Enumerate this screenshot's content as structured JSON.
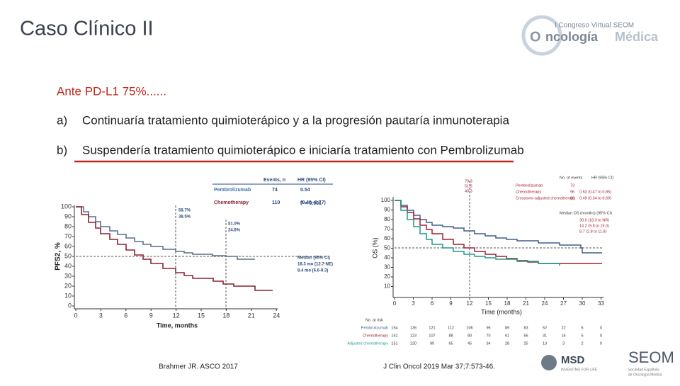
{
  "title": "Caso Clínico II",
  "logo": {
    "line1": "I Congreso Virtual SEOM",
    "line2a": "ncología",
    "line2b": "Médica"
  },
  "question": "Ante PD-L1 75%......",
  "options": [
    {
      "letter": "a)",
      "text": "Continuaría tratamiento quimioterápico y a la progresión pautaría inmunoterapia"
    },
    {
      "letter": "b)",
      "text": "Suspendería tratamiento quimioterápico e iniciaría tratamiento con Pembrolizumab"
    }
  ],
  "figure1": {
    "y_label": "PFS2, %",
    "x_label": "Time, months",
    "x_ticks": [
      "0",
      "3",
      "6",
      "9",
      "12",
      "15",
      "18",
      "21",
      "24"
    ],
    "y_ticks": [
      "100",
      "90",
      "80",
      "70",
      "60",
      "50",
      "40",
      "30",
      "20",
      "10",
      "0"
    ],
    "legend_head": [
      "Events, n",
      "HR (95% CI)"
    ],
    "legend_rows": [
      [
        "Pembrolizumab",
        "74",
        "0.54"
      ],
      [
        "Chemotherapy",
        "110",
        "(0.40–0.77)"
      ]
    ],
    "pvalue": "P < 0.001",
    "notes": [
      "58.7%",
      "38.5%",
      "51.0%",
      "24.6%"
    ],
    "median": [
      "Median (95% CI)",
      "18.3 mo (12.7-NE)",
      "8.4 mo (6.6-9.3)"
    ],
    "citation": "Brahmer JR. ASCO 2017"
  },
  "figure2": {
    "y_label": "OS (%)",
    "x_label": "Time (months)",
    "x_ticks": [
      "0",
      "3",
      "6",
      "9",
      "12",
      "15",
      "18",
      "21",
      "24",
      "27",
      "30",
      "33"
    ],
    "y_ticks": [
      "100",
      "90",
      "80",
      "70",
      "60",
      "50",
      "40",
      "30",
      "20",
      "10"
    ],
    "top_notes": [
      "70.3",
      "51.5",
      "40.3"
    ],
    "legend_head": [
      "No. of events",
      "HR (95% CI)"
    ],
    "legend_rows": [
      [
        "Pembrolizumab",
        "73",
        ""
      ],
      [
        "Chemotherapy",
        "96",
        "0.63 (0.47 to 0.86)"
      ],
      [
        "Crossover-adjusted chemotherapy",
        "96",
        "0.49 (0.34 to 0.69)"
      ]
    ],
    "median_head": "Median OS (months) (95% CI)",
    "median": [
      "30.0 (18.3 to NR)",
      "14.2 (9.8 to 19.0)",
      "8.7 (2.8 to 11.8)"
    ],
    "risk_head": "No. at risk",
    "risk_rows": [
      {
        "name": "Pembrolizumab",
        "values": [
          "154",
          "136",
          "121",
          "112",
          "106",
          "96",
          "89",
          "83",
          "52",
          "22",
          "5",
          "0"
        ]
      },
      {
        "name": "Chemotherapy",
        "values": [
          "151",
          "123",
          "107",
          "88",
          "80",
          "70",
          "61",
          "56",
          "31",
          "16",
          "5",
          "0"
        ]
      },
      {
        "name": "Adjusted chemotherapy",
        "values": [
          "151",
          "120",
          "99",
          "65",
          "45",
          "34",
          "28",
          "25",
          "13",
          "3",
          "2",
          "0"
        ]
      }
    ],
    "citation": "J Clin Oncol 2019 Mar 37;7:573-46."
  },
  "sponsor": {
    "name": "MSD",
    "tag": "INVENTING FOR LIFE"
  },
  "seom": {
    "name": "SEOM",
    "sub1": "Sociedad Española",
    "sub2": "de Oncología Médica"
  }
}
